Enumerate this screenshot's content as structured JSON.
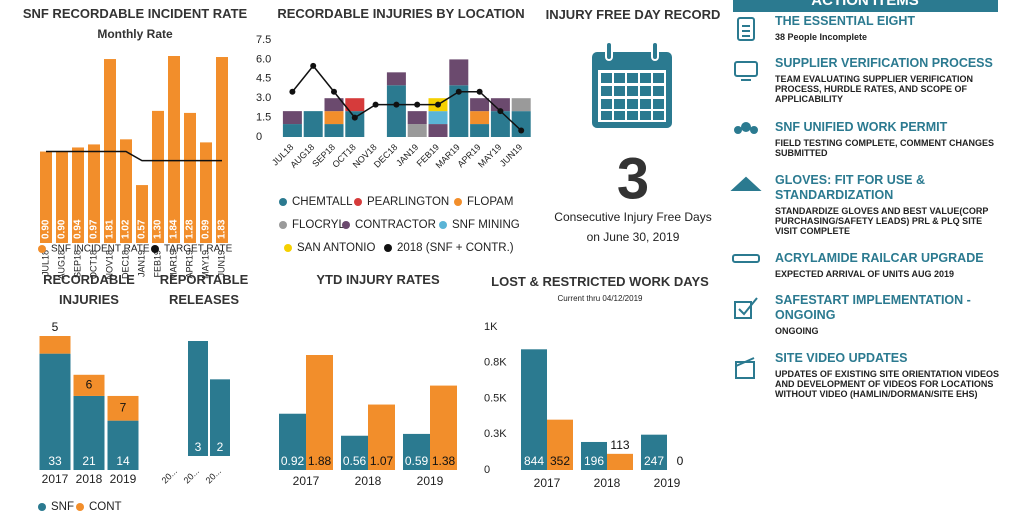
{
  "chart_data": [
    {
      "type": "bar",
      "title": "SNF RECORDABLE INCIDENT RATE",
      "subtitle": "Monthly Rate",
      "categories": [
        "JUL18",
        "AUG18",
        "SEP18",
        "OCT18",
        "NOV18",
        "DEC18",
        "JAN19",
        "FEB19",
        "MAR19",
        "APR19",
        "MAY19",
        "JUN19"
      ],
      "series": [
        {
          "name": "SNF INCIDENT RATE",
          "color": "#f28e2b",
          "values": [
            0.9,
            0.9,
            0.94,
            0.97,
            1.81,
            1.02,
            0.57,
            1.3,
            1.84,
            1.28,
            0.99,
            1.83
          ],
          "value_labels": [
            "0.90",
            "0.90",
            "0.94",
            "0.97",
            "1.81",
            "1.02",
            "0.57",
            "1.30",
            "1.84",
            "1.28",
            "0.99",
            "1.83"
          ]
        },
        {
          "name": "TARGET RATE",
          "color": "#111111",
          "type": "line",
          "values": [
            0.9,
            0.9,
            0.9,
            0.9,
            0.9,
            0.9,
            0.81,
            0.81,
            0.81,
            0.81,
            0.81,
            0.81
          ]
        }
      ]
    },
    {
      "type": "bar",
      "stacked": true,
      "title": "RECORDABLE INJURIES BY LOCATION",
      "categories": [
        "JUL18",
        "AUG18",
        "SEP18",
        "OCT18",
        "NOV18",
        "DEC18",
        "JAN19",
        "FEB19",
        "MAR19",
        "APR19",
        "MAY19",
        "JUN19"
      ],
      "ylim": [
        0,
        7.5
      ],
      "yticks": [
        0,
        1.5,
        {
          "value": 3,
          "label": "3.0"
        },
        4.5,
        {
          "value": 6,
          "label": "6.0"
        },
        7.5
      ],
      "series": [
        {
          "name": "CHEMTALL",
          "color": "#2b7a90",
          "values": [
            1,
            2,
            1,
            2,
            0,
            4,
            0,
            0,
            4,
            1,
            2,
            2
          ]
        },
        {
          "name": "PEARLINGTON",
          "color": "#d63b3b",
          "values": [
            0,
            0,
            0,
            1,
            0,
            0,
            0,
            0,
            0,
            0,
            0,
            0
          ]
        },
        {
          "name": "FLOPAM",
          "color": "#f28e2b",
          "values": [
            0,
            0,
            1,
            0,
            0,
            0,
            0,
            0,
            0,
            1,
            0,
            0
          ]
        },
        {
          "name": "FLOCRYL",
          "color": "#9a9a9a",
          "values": [
            0,
            0,
            0,
            0,
            0,
            0,
            1,
            0,
            0,
            0,
            0,
            1
          ]
        },
        {
          "name": "CONTRACTOR",
          "color": "#6b4a6e",
          "values": [
            1,
            0,
            1,
            0,
            0,
            1,
            1,
            1,
            2,
            1,
            1,
            0
          ]
        },
        {
          "name": "SNF MINING",
          "color": "#5ab4d6",
          "values": [
            0,
            0,
            0,
            0,
            0,
            0,
            0,
            1,
            0,
            0,
            0,
            0
          ]
        },
        {
          "name": "SAN ANTONIO",
          "color": "#f5d000",
          "values": [
            0,
            0,
            0,
            0,
            0,
            0,
            0,
            1,
            0,
            0,
            0,
            0
          ]
        },
        {
          "name": "2018 (SNF + CONTR.)",
          "color": "#111111",
          "type": "line",
          "values": [
            3.5,
            5.5,
            3.5,
            1.5,
            2.5,
            2.5,
            2.5,
            2.5,
            3.5,
            3.5,
            2,
            0.5
          ]
        }
      ]
    },
    {
      "type": "bar",
      "stacked": true,
      "title": "RECORDABLE INJURIES",
      "categories": [
        "2017",
        "2018",
        "2019"
      ],
      "series": [
        {
          "name": "SNF",
          "color": "#2b7a90",
          "values": [
            33,
            21,
            14
          ]
        },
        {
          "name": "CONT",
          "color": "#f28e2b",
          "values": [
            5,
            6,
            7
          ]
        }
      ]
    },
    {
      "type": "bar",
      "title": "REPORTABLE RELEASES",
      "categories": [
        "20...",
        "20...",
        "20..."
      ],
      "color": "#2b7a90",
      "values": [
        null,
        3,
        2
      ]
    },
    {
      "type": "bar",
      "title": "YTD INJURY RATES",
      "categories": [
        "2017",
        "2018",
        "2019"
      ],
      "series": [
        {
          "color": "#2b7a90",
          "values": [
            0.92,
            0.56,
            0.59
          ]
        },
        {
          "color": "#f28e2b",
          "values": [
            1.88,
            1.07,
            1.38
          ]
        }
      ]
    },
    {
      "type": "bar",
      "title": "LOST & RESTRICTED WORK DAYS",
      "subtitle": "Current thru 04/12/2019",
      "categories": [
        "2017",
        "2018",
        "2019"
      ],
      "ylim": [
        0,
        1000
      ],
      "yticks": [
        0,
        {
          "value": 250,
          "label": "0.3K"
        },
        {
          "value": 500,
          "label": "0.5K"
        },
        {
          "value": 750,
          "label": "0.8K"
        },
        {
          "value": 1000,
          "label": "1K"
        }
      ],
      "series": [
        {
          "color": "#2b7a90",
          "values": [
            844,
            196,
            247
          ]
        },
        {
          "color": "#f28e2b",
          "values": [
            352,
            113,
            0
          ]
        }
      ]
    }
  ],
  "kpi": {
    "title": "INJURY FREE DAY RECORD",
    "value": 3,
    "caption": "Consecutive Injury Free Days",
    "date": "on June 30, 2019"
  },
  "action_items": {
    "title": "ACTION ITEMS",
    "items": [
      {
        "title": "THE ESSENTIAL EIGHT",
        "detail": "38 People Incomplete"
      },
      {
        "title": "SUPPLIER VERIFICATION PROCESS",
        "detail": "TEAM EVALUATING SUPPLIER VERIFICATION PROCESS, HURDLE RATES, AND SCOPE OF APPLICABILITY"
      },
      {
        "title": "SNF UNIFIED WORK PERMIT",
        "detail": "FIELD TESTING COMPLETE, COMMENT CHANGES SUBMITTED"
      },
      {
        "title": "GLOVES: FIT FOR USE & STANDARDIZATION",
        "detail": "STANDARDIZE GLOVES AND BEST VALUE(CORP PURCHASING/SAFETY LEADS) PRL & PLQ SITE VISIT COMPLETE"
      },
      {
        "title": "ACRYLAMIDE RAILCAR UPGRADE",
        "detail": "EXPECTED ARRIVAL OF UNITS AUG 2019"
      },
      {
        "title": "SAFESTART IMPLEMENTATION - ONGOING",
        "detail": "ONGOING"
      },
      {
        "title": "SITE VIDEO UPDATES",
        "detail": "UPDATES OF EXISTING SITE ORIENTATION VIDEOS AND DEVELOPMENT OF VIDEOS FOR LOCATIONS WITHOUT VIDEO (HAMLIN/DORMAN/SITE EHS)"
      }
    ]
  }
}
